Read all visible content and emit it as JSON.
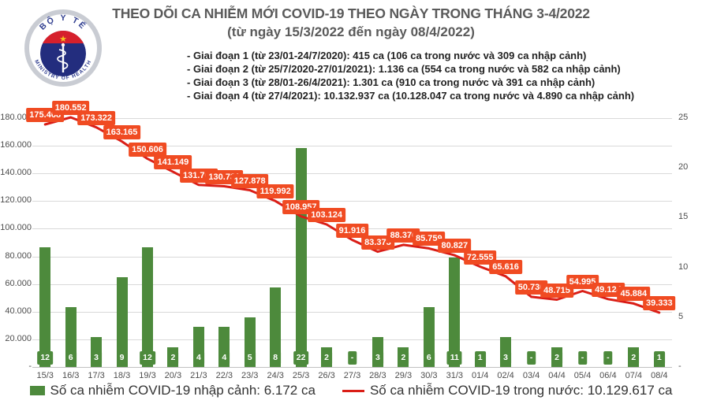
{
  "header": {
    "title": "THEO DÕI CA NHIỄM MỚI COVID-19 THEO NGÀY TRONG THÁNG 3-4/2022",
    "subtitle": "(từ ngày 15/3/2022 đến ngày 08/4/2022)",
    "stages": [
      "- Giai đoạn 1 (từ 23/01-24/7/2020): 415 ca (106 ca trong nước và 309 ca nhập cảnh)",
      "- Giai đoạn 2 (từ 25/7/2020-27/01/2021): 1.136 ca (554 ca trong nước và 582 ca nhập cảnh)",
      "- Giai đoạn 3 (từ 28/01-26/4/2021): 1.301 ca (910 ca trong nước và 391 ca nhập cảnh)",
      "- Giai đoạn 4 (từ 27/4/2021): 10.132.937 ca (10.128.047 ca trong nước và 4.890 ca nhập cảnh)"
    ]
  },
  "logo": {
    "top_text": "BỘ Y TẾ",
    "bottom_text": "MINISTRY OF HEALTH"
  },
  "colors": {
    "bar": "#4d8a3c",
    "line": "#da1e17",
    "point_label_bg": "#f04b22",
    "grid": "#d9d9d9",
    "axis": "#c0c0c0",
    "logo_navy": "#232d7e",
    "logo_red": "#d6202c",
    "logo_blue_text": "#2f3d8f",
    "logo_star": "#f5c51f"
  },
  "chart_data": {
    "type": "combo-bar-line",
    "categories": [
      "15/3",
      "16/3",
      "17/3",
      "18/3",
      "19/3",
      "20/3",
      "21/3",
      "22/3",
      "23/3",
      "24/3",
      "25/3",
      "26/3",
      "27/3",
      "28/3",
      "29/3",
      "30/3",
      "31/3",
      "01/4",
      "02/4",
      "03/4",
      "04/4",
      "05/4",
      "06/4",
      "07/4",
      "08/4"
    ],
    "series": [
      {
        "name": "Số ca nhiễm COVID-19 nhập cảnh",
        "type": "bar",
        "axis": "right",
        "values": [
          12,
          6,
          3,
          9,
          12,
          2,
          4,
          4,
          5,
          8,
          22,
          2,
          0,
          3,
          2,
          6,
          11,
          1,
          3,
          0,
          2,
          0,
          0,
          2,
          1
        ],
        "labels": [
          "12",
          "6",
          "3",
          "9",
          "12",
          "2",
          "4",
          "4",
          "5",
          "8",
          "22",
          "2",
          "-",
          "3",
          "2",
          "6",
          "11",
          "1",
          "3",
          "-",
          "2",
          "-",
          "-",
          "2",
          "1"
        ]
      },
      {
        "name": "Số ca nhiễm COVID-19 trong nước",
        "type": "line",
        "axis": "left",
        "values": [
          175468,
          180552,
          173322,
          163165,
          150606,
          141149,
          131705,
          130731,
          127878,
          119992,
          108957,
          103124,
          91916,
          83373,
          88376,
          85759,
          80827,
          72555,
          65616,
          50730,
          48715,
          54995,
          49124,
          45884,
          39333
        ],
        "labels": [
          "175.468",
          "180.552",
          "173.322",
          "163.165",
          "150.606",
          "141.149",
          "131.705",
          "130.731",
          "127.878",
          "119.992",
          "108.957",
          "103.124",
          "91.916",
          "83.373",
          "88.376",
          "85.759",
          "80.827",
          "72.555",
          "65.616",
          "50.730",
          "48.715",
          "54.995",
          "49.124",
          "45.884",
          "39.333"
        ]
      }
    ],
    "left_axis": {
      "tick_values": [
        180000,
        160000,
        140000,
        120000,
        100000,
        80000,
        60000,
        40000,
        20000,
        0
      ],
      "tick_labels": [
        "180.000",
        "160.000",
        "140.000",
        "120.000",
        "100.000",
        "80.000",
        "60.000",
        "40.000",
        "20.000",
        "-"
      ]
    },
    "right_axis": {
      "tick_values": [
        25,
        20,
        15,
        10,
        5,
        0
      ],
      "tick_labels": [
        "25",
        "20",
        "15",
        "10",
        "5",
        "-"
      ]
    },
    "legend": [
      {
        "label": "Số ca nhiễm COVID-19 nhập cảnh: 6.172 ca",
        "swatch": "bar"
      },
      {
        "label": "Số ca nhiễm COVID-19 trong nước: 10.129.617 ca",
        "swatch": "line"
      }
    ],
    "grid": true,
    "legend_position": "bottom"
  }
}
